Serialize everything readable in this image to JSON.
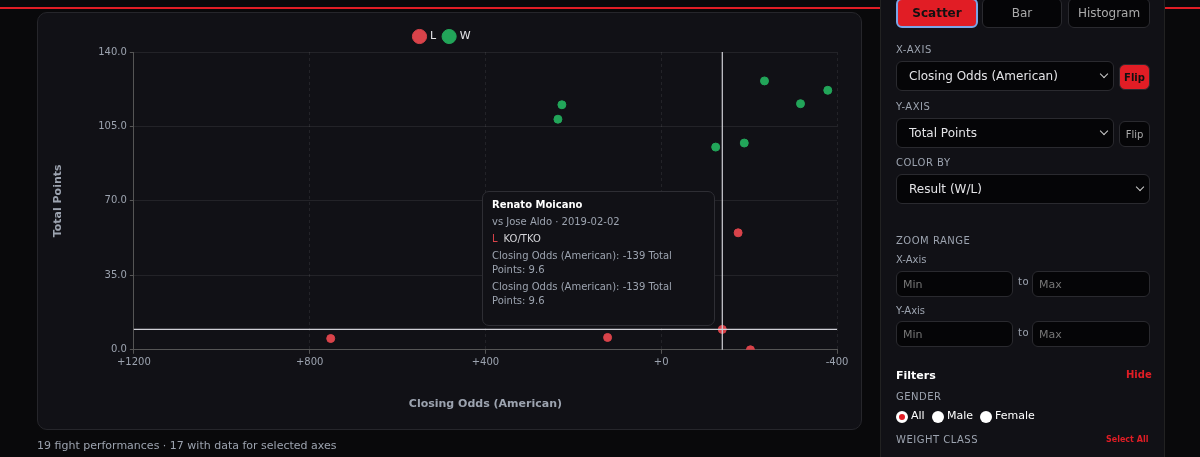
{
  "chart_data": {
    "type": "scatter",
    "xlabel": "Closing Odds (American)",
    "ylabel": "Total Points",
    "xlim": [
      1200,
      -400
    ],
    "xticks": [
      {
        "value": 1200,
        "label": "+1200"
      },
      {
        "value": 800,
        "label": "+800"
      },
      {
        "value": 400,
        "label": "+400"
      },
      {
        "value": 0,
        "label": "+0"
      },
      {
        "value": -400,
        "label": "-400"
      }
    ],
    "ylim": [
      0,
      140
    ],
    "yticks": [
      {
        "value": 0,
        "label": "0.0"
      },
      {
        "value": 35,
        "label": "35.0"
      },
      {
        "value": 70,
        "label": "70.0"
      },
      {
        "value": 105,
        "label": "105.0"
      },
      {
        "value": 140,
        "label": "140.0"
      }
    ],
    "grid": true,
    "legend": "top",
    "marker": "circle",
    "series": [
      {
        "name": "L",
        "color": "#d9434a",
        "x": [
          752,
          122,
          -139,
          -175,
          -203
        ],
        "values": [
          5.3,
          5.8,
          9.6,
          55,
          0
        ]
      },
      {
        "name": "W",
        "color": "#22a559",
        "x": [
          235,
          226,
          -124,
          -189,
          -235,
          -317,
          -379
        ],
        "values": [
          108.4,
          115.2,
          95.3,
          97.2,
          126.4,
          115.7,
          122
        ]
      }
    ],
    "ref_lines": [
      {
        "axis": "x",
        "value": -139,
        "color": "#d0d0d6"
      },
      {
        "axis": "y",
        "value": 9.6,
        "color": "#d0d0d6"
      }
    ],
    "annotations": [
      "Renato Moicano",
      "vs Jose Aldo · 2019-02-02",
      "L",
      "KO/TKO",
      "Closing Odds (American): -139 Total Points: 9.6",
      "Closing Odds (American): -139 Total Points: 9.6",
      "19 fight performances · 17 with data for selected axes",
      "Scatter",
      "Bar",
      "Histogram",
      "X-AXIS",
      "Closing Odds (American)",
      "Flip",
      "Y-AXIS",
      "Total Points",
      "Flip",
      "COLOR BY",
      "Result (W/L)",
      "ZOOM RANGE",
      "X-Axis",
      "Min",
      "to",
      "Max",
      "Y-Axis",
      "Min",
      "to",
      "Max",
      "Filters",
      "Hide",
      "GENDER",
      "All",
      "Male",
      "Female",
      "WEIGHT CLASS",
      "Select All"
    ]
  }
}
